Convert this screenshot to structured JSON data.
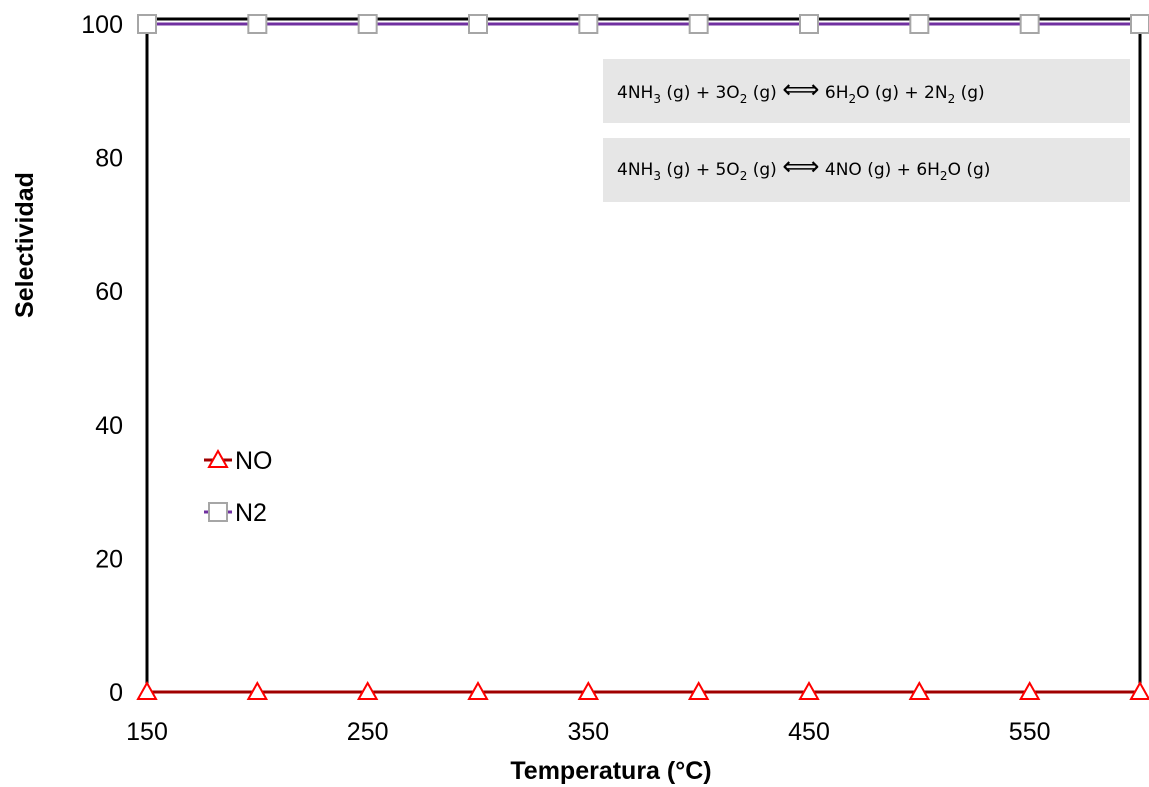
{
  "chart_data": {
    "type": "line",
    "xlabel": "Temperatura (°C)",
    "ylabel": "Selectividad",
    "xlim": [
      150,
      600
    ],
    "ylim": [
      0,
      100
    ],
    "x_ticks": [
      150,
      250,
      350,
      450,
      550
    ],
    "y_ticks": [
      0,
      20,
      40,
      60,
      80,
      100
    ],
    "grid": false,
    "legend_placement": "left-middle",
    "x": [
      150,
      200,
      250,
      300,
      350,
      400,
      450,
      500,
      550,
      600
    ],
    "series": [
      {
        "name": "NO",
        "values": [
          0,
          0,
          0,
          0,
          0,
          0,
          0,
          0,
          0,
          0
        ],
        "line_color": "#a00000",
        "marker": "triangle",
        "marker_color": "#ff0000"
      },
      {
        "name": "N2",
        "values": [
          100,
          100,
          100,
          100,
          100,
          100,
          100,
          100,
          100,
          100
        ],
        "line_color": "#7030a0",
        "marker": "square",
        "marker_color": "#a6a6a6"
      }
    ],
    "annotations": [
      {
        "segments": [
          {
            "t": "4NH"
          },
          {
            "t": "3",
            "sub": true
          },
          {
            "t": " (g) + 3O"
          },
          {
            "t": "2",
            "sub": true
          },
          {
            "t": " (g) "
          },
          {
            "t": "⟺",
            "arrow": true
          },
          {
            "t": " 6H"
          },
          {
            "t": "2",
            "sub": true
          },
          {
            "t": "O (g) + 2N"
          },
          {
            "t": "2",
            "sub": true
          },
          {
            "t": " (g)"
          }
        ]
      },
      {
        "segments": [
          {
            "t": "4NH"
          },
          {
            "t": "3",
            "sub": true
          },
          {
            "t": " (g) + 5O"
          },
          {
            "t": "2",
            "sub": true
          },
          {
            "t": " (g) "
          },
          {
            "t": "⟺",
            "arrow": true
          },
          {
            "t": " 4NO (g) + 6H"
          },
          {
            "t": "2",
            "sub": true
          },
          {
            "t": "O (g)"
          }
        ]
      }
    ]
  }
}
